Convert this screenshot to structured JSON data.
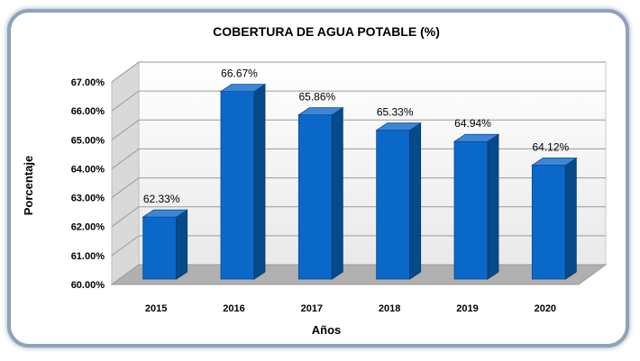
{
  "chart_data": {
    "type": "bar",
    "title": "COBERTURA DE AGUA POTABLE (%)",
    "xlabel": "Años",
    "ylabel": "Porcentaje",
    "categories": [
      "2015",
      "2016",
      "2017",
      "2018",
      "2019",
      "2020"
    ],
    "values": [
      62.33,
      66.67,
      65.86,
      65.33,
      64.94,
      64.12
    ],
    "value_labels": [
      "62.33%",
      "66.67%",
      "65.86%",
      "65.33%",
      "64.94%",
      "64.12%"
    ],
    "ylim": [
      60,
      67
    ],
    "yticks": [
      60,
      61,
      62,
      63,
      64,
      65,
      66,
      67
    ],
    "ytick_labels": [
      "60.00%",
      "61.00%",
      "62.00%",
      "63.00%",
      "64.00%",
      "65.00%",
      "66.00%",
      "67.00%"
    ],
    "grid": true,
    "style": "3d-column",
    "colors": {
      "bar_front": "#0a68c8",
      "bar_side": "#064a8a",
      "bar_top": "#3c86d6",
      "wall": "#f0f0f0",
      "floor": "#b0b0b0",
      "frame_border": "#8a9bb0"
    }
  }
}
